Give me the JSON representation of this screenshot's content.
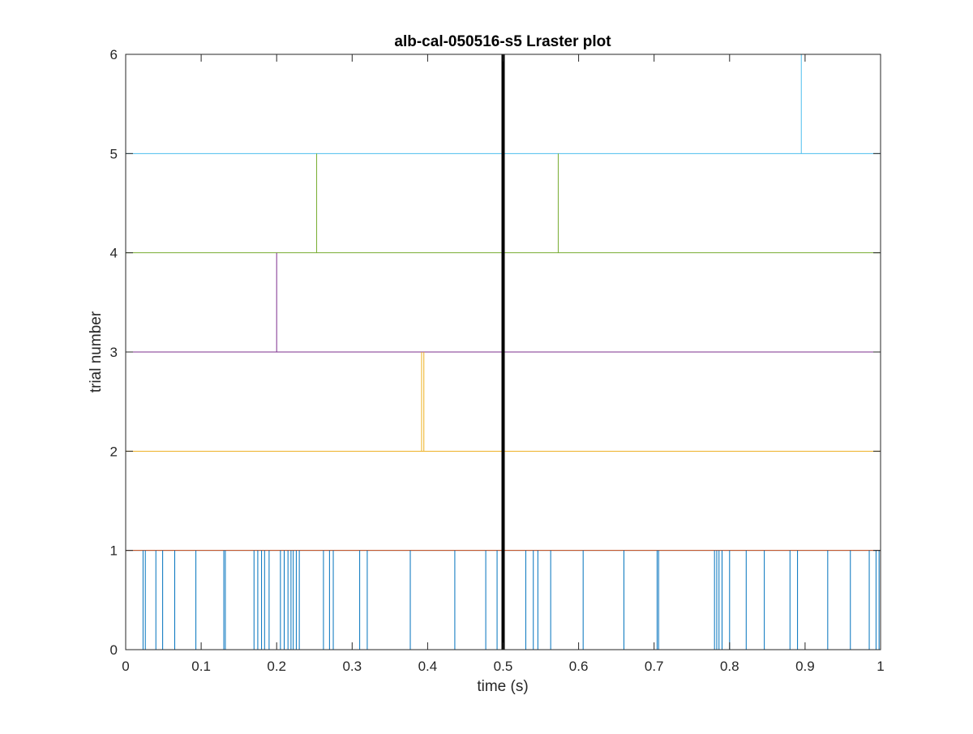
{
  "chart_data": {
    "type": "raster",
    "title": "alb-cal-050516-s5 Lraster plot",
    "xlabel": "time (s)",
    "ylabel": "trial number",
    "xlim": [
      0,
      1
    ],
    "ylim": [
      0,
      6
    ],
    "xticks": [
      0,
      0.1,
      0.2,
      0.3,
      0.4,
      0.5,
      0.6,
      0.7,
      0.8,
      0.9,
      1
    ],
    "xtick_labels": [
      "0",
      "0.1",
      "0.2",
      "0.3",
      "0.4",
      "0.5",
      "0.6",
      "0.7",
      "0.8",
      "0.9",
      "1"
    ],
    "yticks": [
      0,
      1,
      2,
      3,
      4,
      5,
      6
    ],
    "ytick_labels": [
      "0",
      "1",
      "2",
      "3",
      "4",
      "5",
      "6"
    ],
    "grid": false,
    "box": true,
    "event_marker": {
      "x": 0.5,
      "color": "#000000"
    },
    "series": [
      {
        "trial": 1,
        "y_range": [
          0,
          1
        ],
        "color": "#0072BD",
        "baseline_y": 1,
        "spikes": [
          0.023,
          0.026,
          0.04,
          0.049,
          0.065,
          0.093,
          0.13,
          0.132,
          0.17,
          0.175,
          0.18,
          0.184,
          0.19,
          0.205,
          0.21,
          0.215,
          0.219,
          0.222,
          0.226,
          0.23,
          0.262,
          0.27,
          0.275,
          0.31,
          0.32,
          0.377,
          0.436,
          0.477,
          0.492,
          0.53,
          0.54,
          0.546,
          0.563,
          0.606,
          0.66,
          0.704,
          0.706,
          0.78,
          0.783,
          0.786,
          0.79,
          0.8,
          0.822,
          0.846,
          0.88,
          0.89,
          0.93,
          0.96,
          0.985,
          0.994,
          0.998
        ]
      },
      {
        "trial": 2,
        "y_range": [
          2,
          3
        ],
        "color": "#EDB120",
        "baseline_y": 2,
        "spikes": [
          0.392,
          0.395
        ]
      },
      {
        "trial": 3,
        "y_range": [
          3,
          4
        ],
        "color": "#7E2F8E",
        "baseline_y": 3,
        "spikes": [
          0.2
        ]
      },
      {
        "trial": 4,
        "y_range": [
          4,
          5
        ],
        "color": "#77AC30",
        "baseline_y": 4,
        "spikes": [
          0.253,
          0.573
        ]
      },
      {
        "trial": 5,
        "y_range": [
          5,
          6
        ],
        "color": "#4DBEEE",
        "baseline_y": 5,
        "spikes": [
          0.895
        ]
      }
    ],
    "extra_baselines": [
      {
        "y": 1,
        "color": "#D95319"
      }
    ]
  }
}
